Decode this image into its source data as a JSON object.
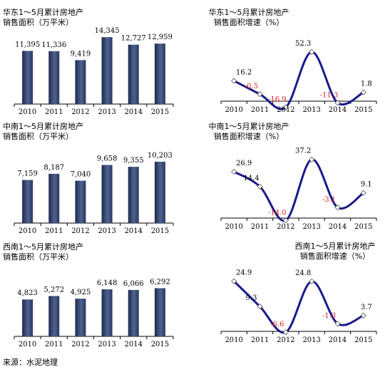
{
  "source": "来源：水泥地理",
  "colors": {
    "bar_dark": "#1f2a4d",
    "bar_light": "#4f6390",
    "line": "#1a1a8c",
    "negative_label": "#e0201c",
    "positive_label": "#000000",
    "axis": "#000000"
  },
  "chart_data": [
    {
      "type": "bar",
      "region": "east",
      "title_lines": [
        "华东1～5月累计房地产",
        "销售面积（万平米）"
      ],
      "categories": [
        "2010",
        "2011",
        "2012",
        "2013",
        "2014",
        "2015"
      ],
      "values": [
        11395,
        11336,
        9419,
        14345,
        12727,
        12959
      ],
      "value_labels": [
        "11,395",
        "11,336",
        "9,419",
        "14,345",
        "12,727",
        "12,959"
      ],
      "ylim": [
        0,
        16500
      ]
    },
    {
      "type": "line",
      "region": "east",
      "title_lines": [
        "华东1～5月累计房地产",
        "销售面积增速（%）"
      ],
      "categories": [
        "2010",
        "2011",
        "2012",
        "2013",
        "2014",
        "2015"
      ],
      "values": [
        16.2,
        -0.5,
        -16.9,
        52.3,
        -11.3,
        1.8
      ],
      "value_labels": [
        "16.2",
        "-0.5",
        "-16.9",
        "52.3",
        "-11.3",
        "1.8"
      ],
      "ylim": [
        -28,
        62
      ]
    },
    {
      "type": "bar",
      "region": "central-south",
      "title_lines": [
        "中南1～5月累计房地产",
        "销售面积（万平米）"
      ],
      "categories": [
        "2010",
        "2011",
        "2012",
        "2013",
        "2014",
        "2015"
      ],
      "values": [
        7159,
        8187,
        7040,
        9658,
        9355,
        10203
      ],
      "value_labels": [
        "7,159",
        "8,187",
        "7,040",
        "9,658",
        "9,355",
        "10,203"
      ],
      "ylim": [
        0,
        12800
      ]
    },
    {
      "type": "line",
      "region": "central-south",
      "title_lines": [
        "中南1～5月累计房地产",
        "销售面积增速（%）"
      ],
      "categories": [
        "2010",
        "2011",
        "2012",
        "2013",
        "2014",
        "2015"
      ],
      "values": [
        26.9,
        14.4,
        -14.0,
        37.2,
        -3.1,
        9.1
      ],
      "value_labels": [
        "26.9",
        "14.4",
        "-14.0",
        "37.2",
        "-3.1",
        "9.1"
      ],
      "ylim": [
        -24,
        52
      ]
    },
    {
      "type": "bar",
      "region": "southwest",
      "title_lines": [
        "西南1～5月累计房地产",
        "销售面积（万平米）"
      ],
      "categories": [
        "2010",
        "2011",
        "2012",
        "2013",
        "2014",
        "2015"
      ],
      "values": [
        4823,
        5272,
        4925,
        6148,
        6066,
        6292
      ],
      "value_labels": [
        "4,823",
        "5,272",
        "4,925",
        "6,148",
        "6,066",
        "6,292"
      ],
      "ylim": [
        0,
        8100
      ]
    },
    {
      "type": "line",
      "region": "southwest",
      "title_lines": [
        "西南1～5月累计房地产",
        "销售面积增速（%）"
      ],
      "categories": [
        "2010",
        "2011",
        "2012",
        "2013",
        "2014",
        "2015"
      ],
      "values": [
        24.9,
        9.3,
        -6.6,
        24.8,
        -1.3,
        3.7
      ],
      "value_labels": [
        "24.9",
        "9.3",
        "-6.6",
        "24.8",
        "-1.3",
        "3.7"
      ],
      "ylim": [
        -14,
        30
      ]
    }
  ]
}
